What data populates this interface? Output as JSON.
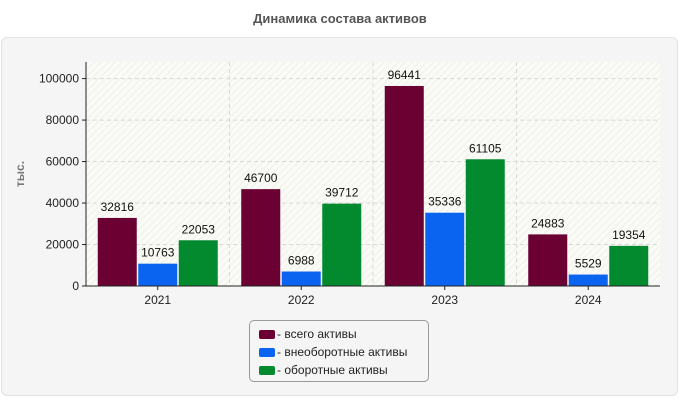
{
  "chart_data": {
    "type": "bar",
    "title": "Динамика состава активов",
    "ylabel": "тыс.",
    "xlabel": "",
    "ylim": [
      0,
      108000
    ],
    "yticks": [
      0,
      20000,
      40000,
      60000,
      80000,
      100000
    ],
    "categories": [
      "2021",
      "2022",
      "2023",
      "2024"
    ],
    "series": [
      {
        "name": "всего активы",
        "color": "#6b0032",
        "values": [
          32816,
          46700,
          96441,
          24883
        ]
      },
      {
        "name": "внеоборотные активы",
        "color": "#0a64f0",
        "values": [
          10763,
          6988,
          35336,
          5529
        ]
      },
      {
        "name": "оборотные активы",
        "color": "#038a2e",
        "values": [
          22053,
          39712,
          61105,
          19354
        ]
      }
    ],
    "grid": true,
    "legend_position": "bottom-center"
  }
}
